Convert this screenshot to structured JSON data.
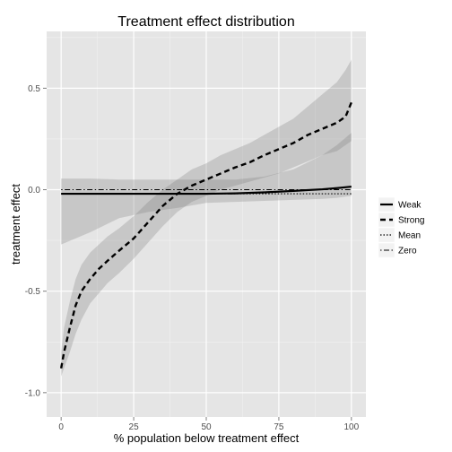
{
  "chart_data": {
    "type": "line",
    "title": "Treatment effect distribution",
    "xlabel": "% population below treatment effect",
    "ylabel": "treatment effect",
    "xlim": [
      -5,
      105
    ],
    "ylim": [
      -1.12,
      0.78
    ],
    "xticks": [
      0,
      25,
      50,
      75,
      100
    ],
    "xtick_labels": [
      "0",
      "25",
      "50",
      "75",
      "100"
    ],
    "yticks": [
      -1.0,
      -0.5,
      0.0,
      0.5
    ],
    "ytick_labels": [
      "-1.0",
      "-0.5",
      "0.0",
      "0.5"
    ],
    "grid": true,
    "legend_position": "right",
    "series": [
      {
        "name": "Weak",
        "linetype": "solid",
        "x": [
          0,
          10,
          20,
          30,
          40,
          50,
          60,
          70,
          80,
          90,
          95,
          100
        ],
        "y": [
          -0.02,
          -0.02,
          -0.02,
          -0.02,
          -0.02,
          -0.02,
          -0.018,
          -0.013,
          -0.006,
          0.002,
          0.008,
          0.015
        ],
        "band_lower": [
          -0.27,
          -0.21,
          -0.14,
          -0.11,
          -0.09,
          -0.065,
          -0.06,
          -0.055,
          -0.05,
          -0.045,
          -0.04,
          -0.03
        ],
        "band_upper": [
          0.055,
          0.055,
          0.05,
          0.05,
          0.05,
          0.05,
          0.05,
          0.065,
          0.1,
          0.17,
          0.22,
          0.28
        ]
      },
      {
        "name": "Strong",
        "linetype": "dashed",
        "x": [
          0,
          1,
          3,
          5,
          7,
          10,
          13,
          16,
          20,
          25,
          30,
          35,
          40,
          45,
          50,
          55,
          60,
          65,
          70,
          75,
          80,
          85,
          90,
          95,
          98,
          100
        ],
        "y": [
          -0.88,
          -0.8,
          -0.68,
          -0.57,
          -0.5,
          -0.44,
          -0.39,
          -0.35,
          -0.3,
          -0.24,
          -0.16,
          -0.08,
          -0.02,
          0.02,
          0.05,
          0.08,
          0.11,
          0.135,
          0.17,
          0.2,
          0.23,
          0.27,
          0.3,
          0.33,
          0.36,
          0.43
        ],
        "band_lower": [
          -0.92,
          -0.88,
          -0.8,
          -0.71,
          -0.64,
          -0.56,
          -0.51,
          -0.46,
          -0.41,
          -0.34,
          -0.26,
          -0.18,
          -0.11,
          -0.06,
          -0.03,
          0.0,
          0.02,
          0.04,
          0.06,
          0.08,
          0.11,
          0.14,
          0.17,
          0.19,
          0.22,
          0.24
        ],
        "band_upper": [
          -0.8,
          -0.68,
          -0.55,
          -0.44,
          -0.37,
          -0.31,
          -0.27,
          -0.23,
          -0.19,
          -0.13,
          -0.06,
          0.0,
          0.05,
          0.1,
          0.13,
          0.17,
          0.2,
          0.23,
          0.27,
          0.31,
          0.35,
          0.41,
          0.47,
          0.53,
          0.59,
          0.64
        ]
      },
      {
        "name": "Mean",
        "linetype": "dotted",
        "x": [
          0,
          100
        ],
        "y": [
          -0.02,
          -0.02
        ]
      },
      {
        "name": "Zero",
        "linetype": "dotdash",
        "x": [
          0,
          100
        ],
        "y": [
          0,
          0
        ]
      }
    ]
  }
}
